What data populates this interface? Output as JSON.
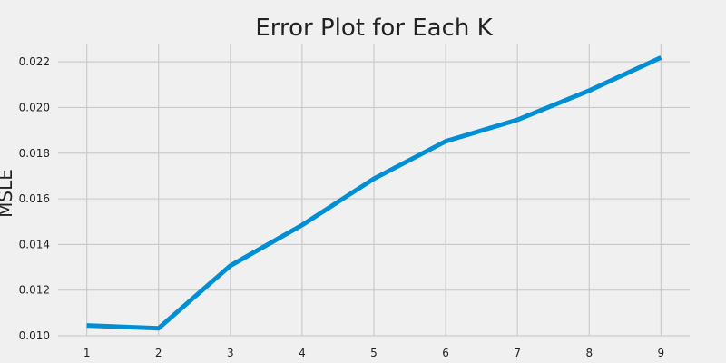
{
  "chart_data": {
    "type": "line",
    "title": "Error Plot for Each K",
    "xlabel": "",
    "ylabel": "MSLE",
    "x": [
      1,
      2,
      3,
      4,
      5,
      6,
      7,
      8,
      9
    ],
    "series": [
      {
        "values": [
          0.01045,
          0.01033,
          0.01307,
          0.01485,
          0.01688,
          0.01852,
          0.01946,
          0.02074,
          0.02219
        ]
      }
    ],
    "x_ticks": [
      "1",
      "2",
      "3",
      "4",
      "5",
      "6",
      "7",
      "8",
      "9"
    ],
    "y_ticks": [
      "0.010",
      "0.012",
      "0.014",
      "0.016",
      "0.018",
      "0.020",
      "0.022"
    ],
    "xlim": [
      0.6,
      9.4
    ],
    "ylim": [
      0.01,
      0.0228
    ],
    "grid": true,
    "legend": "none",
    "colors": {
      "line": "#008fd5",
      "grid": "#cbcbcb",
      "background": "#f0f0f0"
    }
  }
}
